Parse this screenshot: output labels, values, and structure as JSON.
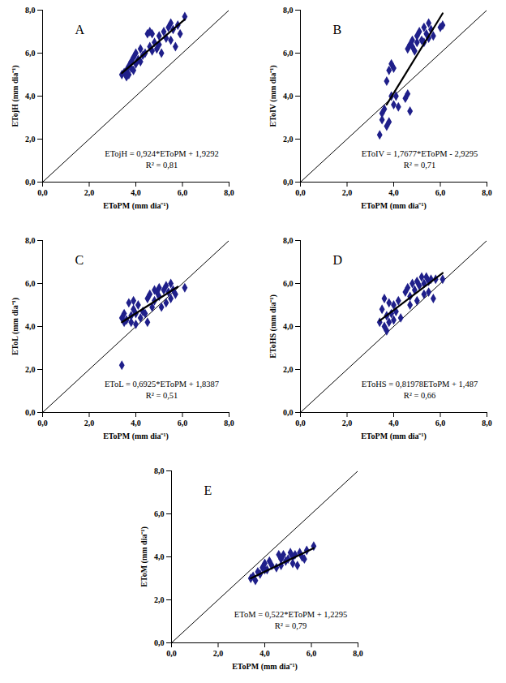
{
  "chart_data": [
    {
      "type": "scatter",
      "title": "A",
      "x_label": "EToPM (mm dia⁻¹)",
      "y_label": "ETojH (mm dia⁻¹)",
      "annotations": [
        "ETojH = 0,924*EToPM + 1,9292",
        "R² = 0,81"
      ],
      "color": "#1f1f8a",
      "marker": "diamond",
      "xlim": [
        0,
        8
      ],
      "ylim": [
        0,
        8
      ],
      "xticks": [
        {
          "value": 0,
          "label": "0,0"
        },
        {
          "value": 2,
          "label": "2,0"
        },
        {
          "value": 4,
          "label": "4,0"
        },
        {
          "value": 6,
          "label": "6,0"
        },
        {
          "value": 8,
          "label": "8,0"
        }
      ],
      "yticks": [
        {
          "value": 0,
          "label": "0,0"
        },
        {
          "value": 2,
          "label": "2,0"
        },
        {
          "value": 4,
          "label": "4,0"
        },
        {
          "value": 6,
          "label": "6,0"
        },
        {
          "value": 8,
          "label": "8,0"
        }
      ],
      "x": [
        3.4,
        3.5,
        3.6,
        3.6,
        3.7,
        3.7,
        3.8,
        3.8,
        3.9,
        3.9,
        4.0,
        4.0,
        4.1,
        4.2,
        4.2,
        4.3,
        4.4,
        4.5,
        4.6,
        4.6,
        4.7,
        4.7,
        4.8,
        4.9,
        5.0,
        5.0,
        5.1,
        5.2,
        5.3,
        5.4,
        5.5,
        5.5,
        5.6,
        5.7,
        5.8,
        5.9,
        6.1
      ],
      "y": [
        5.0,
        5.1,
        4.9,
        5.2,
        5.0,
        5.4,
        5.3,
        5.6,
        5.2,
        5.8,
        5.5,
        6.0,
        5.7,
        5.6,
        6.2,
        5.9,
        6.0,
        6.9,
        7.0,
        6.3,
        6.1,
        6.9,
        6.5,
        6.2,
        6.4,
        6.8,
        6.0,
        7.0,
        6.7,
        7.2,
        7.4,
        6.6,
        7.1,
        6.3,
        7.3,
        6.9,
        7.7
      ],
      "fit_line": {
        "x": [
          3.4,
          6.1
        ],
        "y": [
          5.07,
          7.57
        ]
      },
      "reference_line": {
        "x": [
          0,
          8
        ],
        "y": [
          0,
          8
        ]
      }
    },
    {
      "type": "scatter",
      "title": "B",
      "x_label": "EToPM (mm dia⁻¹)",
      "y_label": "EToIV (mm dia⁻¹)",
      "annotations": [
        "EToIV = 1,7677*EToPM - 2,9295",
        "R² = 0,71"
      ],
      "color": "#1f1f8a",
      "marker": "diamond",
      "xlim": [
        0,
        8
      ],
      "ylim": [
        0,
        8
      ],
      "xticks": [
        {
          "value": 0,
          "label": "0,0"
        },
        {
          "value": 2,
          "label": "2,0"
        },
        {
          "value": 4,
          "label": "4,0"
        },
        {
          "value": 6,
          "label": "6,0"
        },
        {
          "value": 8,
          "label": "8,0"
        }
      ],
      "yticks": [
        {
          "value": 0,
          "label": "0,0"
        },
        {
          "value": 2,
          "label": "2,0"
        },
        {
          "value": 4,
          "label": "4,0"
        },
        {
          "value": 6,
          "label": "6,0"
        },
        {
          "value": 8,
          "label": "8,0"
        }
      ],
      "x": [
        3.4,
        3.5,
        3.5,
        3.6,
        3.7,
        3.7,
        3.8,
        3.8,
        3.9,
        3.9,
        4.0,
        4.0,
        4.1,
        4.2,
        4.5,
        4.6,
        4.6,
        4.7,
        4.7,
        4.8,
        4.8,
        4.9,
        5.0,
        5.0,
        5.1,
        5.2,
        5.3,
        5.3,
        5.4,
        5.5,
        5.5,
        5.6,
        5.7,
        6.0,
        6.1
      ],
      "y": [
        2.2,
        3.2,
        2.9,
        3.4,
        2.6,
        4.7,
        2.8,
        5.2,
        5.5,
        4.0,
        5.3,
        3.6,
        4.0,
        3.5,
        3.9,
        4.1,
        6.2,
        3.3,
        6.4,
        6.6,
        6.3,
        6.1,
        6.5,
        6.8,
        7.0,
        6.6,
        7.2,
        6.5,
        6.9,
        7.4,
        6.7,
        7.1,
        6.8,
        7.2,
        7.3
      ],
      "fit_line": {
        "x": [
          3.7,
          6.1
        ],
        "y": [
          3.61,
          7.85
        ]
      },
      "reference_line": {
        "x": [
          0,
          8
        ],
        "y": [
          0,
          8
        ]
      }
    },
    {
      "type": "scatter",
      "title": "C",
      "x_label": "EToPM (mm dia⁻¹)",
      "y_label": "EToL (mm dia⁻¹)",
      "annotations": [
        "EToL = 0,6925*EToPM + 1,8387",
        "R² = 0,51"
      ],
      "color": "#1f1f8a",
      "marker": "diamond",
      "xlim": [
        0,
        8
      ],
      "ylim": [
        0,
        8
      ],
      "xticks": [
        {
          "value": 0,
          "label": "0,0"
        },
        {
          "value": 2,
          "label": "2,0"
        },
        {
          "value": 4,
          "label": "4,0"
        },
        {
          "value": 6,
          "label": "6,0"
        },
        {
          "value": 8,
          "label": "8,0"
        }
      ],
      "yticks": [
        {
          "value": 0,
          "label": "0,0"
        },
        {
          "value": 2,
          "label": "2,0"
        },
        {
          "value": 4,
          "label": "4,0"
        },
        {
          "value": 6,
          "label": "6,0"
        },
        {
          "value": 8,
          "label": "8,0"
        }
      ],
      "x": [
        3.4,
        3.4,
        3.5,
        3.5,
        3.6,
        3.7,
        3.8,
        3.8,
        3.9,
        3.9,
        4.0,
        4.0,
        4.1,
        4.2,
        4.3,
        4.4,
        4.5,
        4.5,
        4.6,
        4.7,
        4.8,
        4.8,
        4.9,
        5.0,
        5.0,
        5.1,
        5.2,
        5.3,
        5.3,
        5.4,
        5.5,
        5.5,
        5.6,
        5.7,
        6.1
      ],
      "y": [
        2.2,
        4.4,
        4.2,
        4.6,
        4.3,
        5.1,
        4.5,
        4.2,
        5.2,
        4.8,
        4.6,
        4.1,
        5.0,
        4.4,
        4.7,
        4.6,
        4.2,
        5.3,
        5.5,
        4.9,
        5.7,
        5.2,
        5.6,
        5.8,
        5.4,
        4.9,
        5.7,
        5.9,
        5.1,
        5.6,
        6.0,
        5.3,
        5.7,
        5.5,
        5.8
      ],
      "fit_line": {
        "x": [
          3.4,
          5.8
        ],
        "y": [
          4.2,
          5.85
        ]
      },
      "reference_line": {
        "x": [
          0,
          8
        ],
        "y": [
          0,
          8
        ]
      }
    },
    {
      "type": "scatter",
      "title": "D",
      "x_label": "EToPM (mm dia⁻¹)",
      "y_label": "EToHS (mm dia⁻¹)",
      "annotations": [
        "EToHS = 0,81978EToPM + 1,487",
        "R² = 0,66"
      ],
      "color": "#1f1f8a",
      "marker": "diamond",
      "xlim": [
        0,
        8
      ],
      "ylim": [
        0,
        8
      ],
      "xticks": [
        {
          "value": 0,
          "label": "0,0"
        },
        {
          "value": 2,
          "label": "2,0"
        },
        {
          "value": 4,
          "label": "4,0"
        },
        {
          "value": 6,
          "label": "6,0"
        },
        {
          "value": 8,
          "label": "8,0"
        }
      ],
      "yticks": [
        {
          "value": 0,
          "label": "0,0"
        },
        {
          "value": 2,
          "label": "2,0"
        },
        {
          "value": 4,
          "label": "4,0"
        },
        {
          "value": 6,
          "label": "6,0"
        },
        {
          "value": 8,
          "label": "8,0"
        }
      ],
      "x": [
        3.4,
        3.5,
        3.6,
        3.6,
        3.7,
        3.7,
        3.8,
        3.8,
        3.9,
        4.0,
        4.0,
        4.1,
        4.2,
        4.3,
        4.5,
        4.6,
        4.7,
        4.7,
        4.8,
        4.9,
        5.0,
        5.0,
        5.1,
        5.2,
        5.3,
        5.3,
        5.4,
        5.5,
        5.5,
        5.6,
        5.7,
        5.8,
        6.1
      ],
      "y": [
        4.2,
        4.8,
        4.0,
        5.3,
        3.8,
        4.5,
        5.1,
        4.2,
        4.6,
        5.0,
        4.3,
        4.7,
        5.2,
        4.4,
        5.6,
        5.8,
        5.0,
        5.4,
        6.0,
        5.7,
        6.1,
        5.2,
        5.9,
        6.3,
        6.0,
        5.5,
        6.3,
        6.1,
        5.6,
        6.2,
        5.3,
        6.2,
        6.2
      ],
      "fit_line": {
        "x": [
          3.4,
          6.1
        ],
        "y": [
          4.27,
          6.49
        ]
      },
      "reference_line": {
        "x": [
          0,
          8
        ],
        "y": [
          0,
          8
        ]
      }
    },
    {
      "type": "scatter",
      "title": "E",
      "x_label": "EToPM (mm dia⁻¹)",
      "y_label": "EToM (mm dia⁻¹)",
      "annotations": [
        "EToM = 0,522*EToPM + 1,2295",
        "R² = 0,79"
      ],
      "color": "#1f1f8a",
      "marker": "diamond",
      "xlim": [
        0,
        8
      ],
      "ylim": [
        0,
        8
      ],
      "xticks": [
        {
          "value": 0,
          "label": "0,0"
        },
        {
          "value": 2,
          "label": "2,0"
        },
        {
          "value": 4,
          "label": "4,0"
        },
        {
          "value": 6,
          "label": "6,0"
        },
        {
          "value": 8,
          "label": "8,0"
        }
      ],
      "yticks": [
        {
          "value": 0,
          "label": "0,0"
        },
        {
          "value": 2,
          "label": "2,0"
        },
        {
          "value": 4,
          "label": "4,0"
        },
        {
          "value": 6,
          "label": "6,0"
        },
        {
          "value": 8,
          "label": "8,0"
        }
      ],
      "x": [
        3.4,
        3.5,
        3.6,
        3.7,
        3.8,
        3.9,
        4.0,
        4.0,
        4.1,
        4.2,
        4.3,
        4.5,
        4.6,
        4.7,
        4.7,
        4.8,
        4.9,
        5.0,
        5.1,
        5.2,
        5.2,
        5.3,
        5.4,
        5.5,
        5.6,
        5.7,
        5.8,
        6.1
      ],
      "y": [
        3.0,
        3.1,
        2.9,
        3.3,
        3.2,
        3.5,
        3.4,
        3.7,
        3.4,
        3.8,
        3.6,
        3.5,
        4.1,
        3.9,
        3.6,
        4.1,
        3.8,
        3.9,
        4.2,
        4.0,
        3.7,
        4.1,
        3.6,
        4.2,
        4.0,
        3.9,
        4.3,
        4.5
      ],
      "fit_line": {
        "x": [
          3.4,
          6.1
        ],
        "y": [
          3.0,
          4.41
        ]
      },
      "reference_line": {
        "x": [
          0,
          8
        ],
        "y": [
          0,
          8
        ]
      }
    }
  ]
}
